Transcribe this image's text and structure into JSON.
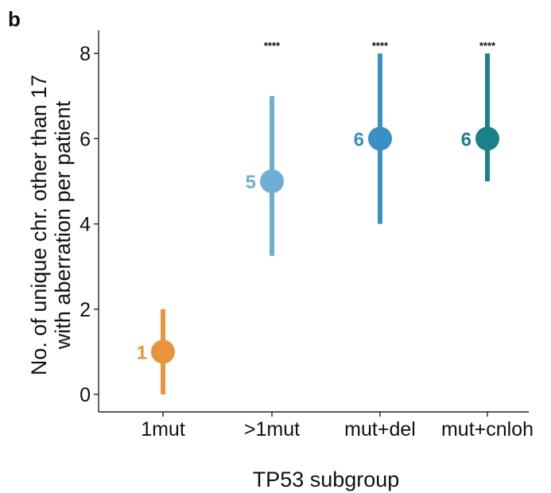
{
  "panel_label": "b",
  "chart_data": {
    "type": "pointrange",
    "xlabel": "TP53 subgroup",
    "ylabel_lines": [
      "No. of unique chr. other than 17",
      "with aberration per patient"
    ],
    "ylim": [
      0,
      8.5
    ],
    "yticks": [
      0,
      2,
      4,
      6,
      8
    ],
    "categories": [
      "1mut",
      ">1mut",
      "mut+del",
      "mut+cnloh"
    ],
    "median": [
      1,
      5,
      6,
      6
    ],
    "low": [
      0,
      3.25,
      4,
      5
    ],
    "high": [
      2,
      7,
      8,
      8
    ],
    "value_labels": [
      "1",
      "5",
      "6",
      "6"
    ],
    "significance": [
      "",
      "****",
      "****",
      "****"
    ],
    "colors": [
      "#E8943A",
      "#6FAED4",
      "#3A8FC4",
      "#1A8189"
    ]
  }
}
